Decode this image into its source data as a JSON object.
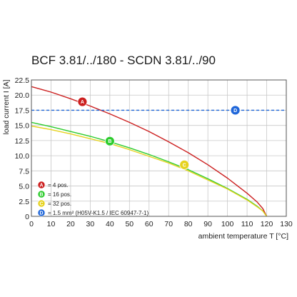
{
  "chart_data": {
    "type": "line",
    "title": "BCF 3.81/../180 - SCDN 3.81/../90",
    "xlabel": "ambient temperature T [°C]",
    "ylabel": "load current I [A]",
    "xlim": [
      0,
      130
    ],
    "ylim": [
      0,
      22.5
    ],
    "xticks": [
      0,
      10,
      20,
      30,
      40,
      50,
      60,
      70,
      80,
      90,
      100,
      110,
      120,
      130
    ],
    "yticks": [
      0,
      2.5,
      5.0,
      7.5,
      10.0,
      12.5,
      15.0,
      17.5,
      20.0,
      22.5
    ],
    "ytick_labels": [
      "0",
      "2.5",
      "5.0",
      "7.5",
      "10.0",
      "12.5",
      "15.0",
      "17.5",
      "20.0",
      "22.5"
    ],
    "grid": true,
    "legend_position": "bottom-left",
    "series": [
      {
        "marker": "A",
        "color": "#cc1f1f",
        "style": "solid",
        "legend": "= 4 pos.",
        "label_at": [
          26,
          18.9
        ],
        "x": [
          0,
          10,
          20,
          30,
          40,
          50,
          60,
          70,
          80,
          90,
          100,
          110,
          115,
          118,
          120
        ],
        "y": [
          21.4,
          20.5,
          19.4,
          18.2,
          16.9,
          15.5,
          14.0,
          12.3,
          10.5,
          8.5,
          6.3,
          3.8,
          2.4,
          1.3,
          0
        ]
      },
      {
        "marker": "B",
        "color": "#2ecc2e",
        "style": "solid",
        "legend": "= 16 pos.",
        "label_at": [
          40,
          12.4
        ],
        "x": [
          0,
          10,
          20,
          30,
          40,
          50,
          60,
          70,
          80,
          90,
          100,
          110,
          115,
          118,
          120
        ],
        "y": [
          15.5,
          14.8,
          14.0,
          13.2,
          12.3,
          11.3,
          10.2,
          9.0,
          7.7,
          6.2,
          4.6,
          2.8,
          1.7,
          0.9,
          0
        ]
      },
      {
        "marker": "C",
        "color": "#e6d21e",
        "style": "solid",
        "legend": "= 32 pos.",
        "label_at": [
          78,
          8.5
        ],
        "x": [
          0,
          10,
          20,
          30,
          40,
          50,
          60,
          70,
          80,
          90,
          100,
          110,
          115,
          118,
          120
        ],
        "y": [
          14.9,
          14.3,
          13.6,
          12.8,
          12.0,
          11.0,
          9.9,
          8.8,
          7.5,
          6.0,
          4.5,
          2.7,
          1.6,
          0.9,
          0
        ]
      },
      {
        "marker": "D",
        "color": "#1f66d9",
        "style": "dashed",
        "legend": "= 1.5 mm² (H05V-K1.5 / IEC 60947-7-1)",
        "label_at": [
          104,
          17.5
        ],
        "x": [
          0,
          130
        ],
        "y": [
          17.5,
          17.5
        ]
      }
    ]
  }
}
